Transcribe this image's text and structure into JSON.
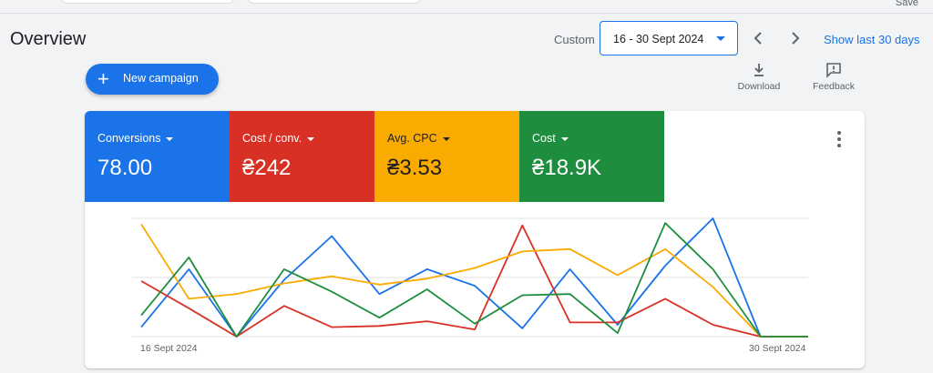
{
  "header": {
    "save_label": "Save",
    "title": "Overview",
    "custom_label": "Custom",
    "date_range": "16 - 30 Sept 2024",
    "show_last": "Show last 30 days"
  },
  "actions": {
    "new_campaign": "New campaign",
    "download": "Download",
    "feedback": "Feedback"
  },
  "metrics": [
    {
      "label": "Conversions",
      "value": "78.00",
      "color": "#1a73e8"
    },
    {
      "label": "Cost / conv.",
      "value": "₴242",
      "color": "#d93025"
    },
    {
      "label": "Avg. CPC",
      "value": "₴3.53",
      "color": "#f9ab00"
    },
    {
      "label": "Cost",
      "value": "₴18.9K",
      "color": "#1e8e3e"
    }
  ],
  "chart_data": {
    "type": "line",
    "x": [
      "16 Sept 2024",
      "17 Sept 2024",
      "18 Sept 2024",
      "19 Sept 2024",
      "20 Sept 2024",
      "21 Sept 2024",
      "22 Sept 2024",
      "23 Sept 2024",
      "24 Sept 2024",
      "25 Sept 2024",
      "26 Sept 2024",
      "27 Sept 2024",
      "28 Sept 2024",
      "29 Sept 2024",
      "30 Sept 2024"
    ],
    "x_tick_labels": [
      "16 Sept 2024",
      "30 Sept 2024"
    ],
    "grid": true,
    "series": [
      {
        "name": "Conversions",
        "color": "#1a73e8",
        "values": [
          0.08,
          0.57,
          0,
          0.48,
          0.85,
          0.36,
          0.57,
          0.43,
          0.07,
          0.57,
          0.1,
          0.6,
          1.0,
          0,
          0
        ]
      },
      {
        "name": "Cost / conv.",
        "color": "#d93025",
        "values": [
          0.47,
          0.24,
          0,
          0.26,
          0.08,
          0.09,
          0.13,
          0.06,
          0.94,
          0.12,
          0.12,
          0.32,
          0.1,
          0,
          0
        ]
      },
      {
        "name": "Avg. CPC",
        "color": "#f9ab00",
        "values": [
          0.95,
          0.32,
          0.36,
          0.45,
          0.51,
          0.44,
          0.49,
          0.58,
          0.72,
          0.74,
          0.52,
          0.74,
          0.42,
          0,
          0
        ]
      },
      {
        "name": "Cost",
        "color": "#1e8e3e",
        "values": [
          0.18,
          0.67,
          0,
          0.57,
          0.38,
          0.16,
          0.4,
          0.11,
          0.35,
          0.36,
          0.03,
          0.96,
          0.57,
          0,
          0
        ]
      }
    ]
  }
}
